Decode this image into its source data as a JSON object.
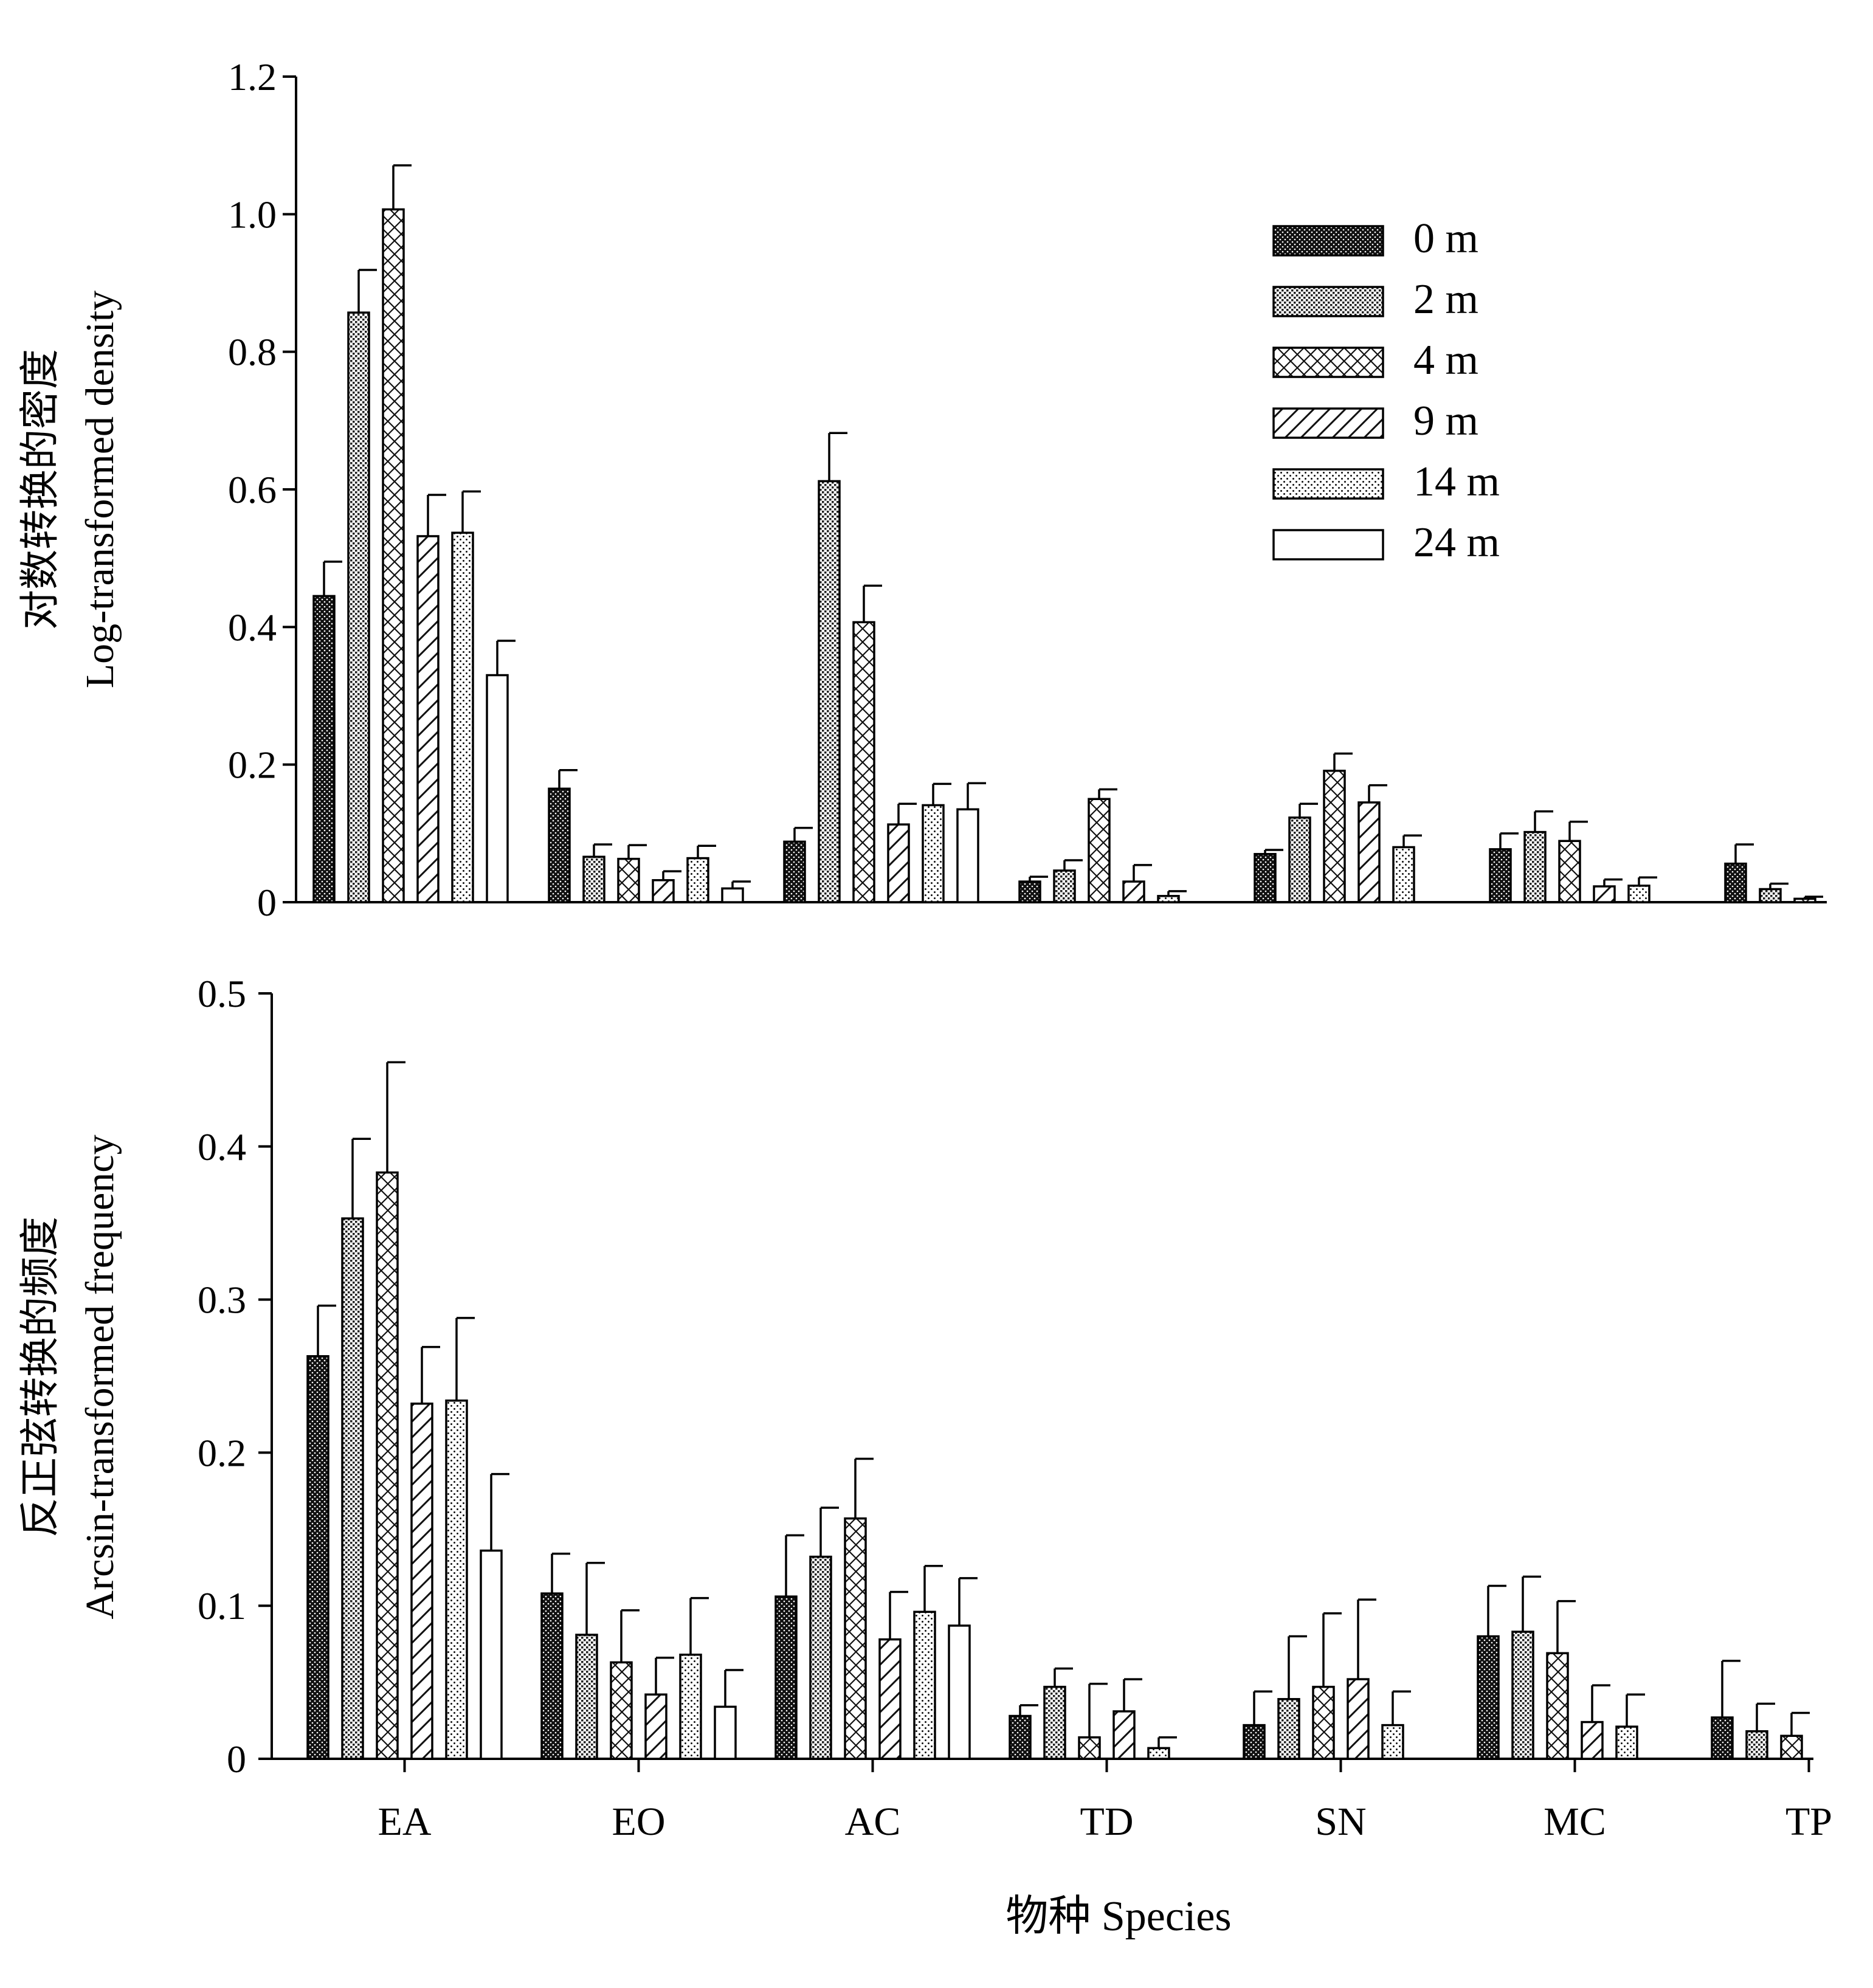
{
  "series_names": [
    "0 m",
    "2 m",
    "4 m",
    "9 m",
    "14 m",
    "24 m"
  ],
  "x_title": "物种 Species",
  "chart_data": [
    {
      "type": "bar",
      "panel": "top",
      "ylabel_cn": "对数转换的密度",
      "ylabel_en": "Log-transformed density",
      "ylim": [
        0,
        1.2
      ],
      "yticks": [
        "0",
        "0.2",
        "0.4",
        "0.6",
        "0.8",
        "1.0",
        "1.2"
      ],
      "categories": [
        "EA",
        "EO",
        "AC",
        "TD",
        "SN",
        "MC",
        "TP"
      ],
      "category_labels_visible": false,
      "legend_position": "top-right",
      "series": [
        {
          "name": "0 m",
          "values": [
            0.445,
            0.165,
            0.088,
            0.03,
            0.07,
            0.077,
            0.056
          ],
          "errors": [
            0.05,
            0.027,
            0.02,
            0.007,
            0.006,
            0.023,
            0.028
          ]
        },
        {
          "name": "2 m",
          "values": [
            0.857,
            0.066,
            0.612,
            0.046,
            0.123,
            0.102,
            0.019
          ],
          "errors": [
            0.062,
            0.018,
            0.07,
            0.015,
            0.02,
            0.03,
            0.008
          ]
        },
        {
          "name": "4 m",
          "values": [
            1.007,
            0.063,
            0.407,
            0.15,
            0.191,
            0.089,
            0.005
          ],
          "errors": [
            0.064,
            0.02,
            0.053,
            0.014,
            0.025,
            0.028,
            0.003
          ]
        },
        {
          "name": "9 m",
          "values": [
            0.532,
            0.032,
            0.113,
            0.03,
            0.145,
            0.023,
            null
          ],
          "errors": [
            0.06,
            0.013,
            0.03,
            0.024,
            0.025,
            0.01,
            null
          ]
        },
        {
          "name": "14 m",
          "values": [
            0.537,
            0.064,
            0.141,
            0.009,
            0.08,
            0.024,
            null
          ],
          "errors": [
            0.06,
            0.018,
            0.031,
            0.007,
            0.017,
            0.012,
            null
          ]
        },
        {
          "name": "24 m",
          "values": [
            0.33,
            0.02,
            0.135,
            null,
            null,
            null,
            null
          ],
          "errors": [
            0.05,
            0.01,
            0.038,
            null,
            null,
            null,
            null
          ]
        }
      ]
    },
    {
      "type": "bar",
      "panel": "bottom",
      "ylabel_cn": "反正弦转换的频度",
      "ylabel_en": "Arcsin-transformed frequency",
      "ylim": [
        0,
        0.5
      ],
      "yticks": [
        "0",
        "0.1",
        "0.2",
        "0.3",
        "0.4",
        "0.5"
      ],
      "categories": [
        "EA",
        "EO",
        "AC",
        "TD",
        "SN",
        "MC",
        "TP"
      ],
      "category_labels_visible": true,
      "series": [
        {
          "name": "0 m",
          "values": [
            0.263,
            0.108,
            0.106,
            0.028,
            0.022,
            0.08,
            0.027
          ],
          "errors": [
            0.033,
            0.026,
            0.04,
            0.007,
            0.022,
            0.033,
            0.037
          ]
        },
        {
          "name": "2 m",
          "values": [
            0.353,
            0.081,
            0.132,
            0.047,
            0.039,
            0.083,
            0.018
          ],
          "errors": [
            0.052,
            0.047,
            0.032,
            0.012,
            0.041,
            0.036,
            0.018
          ]
        },
        {
          "name": "4 m",
          "values": [
            0.383,
            0.063,
            0.157,
            0.014,
            0.047,
            0.069,
            0.015
          ],
          "errors": [
            0.072,
            0.034,
            0.039,
            0.035,
            0.048,
            0.034,
            0.015
          ]
        },
        {
          "name": "9 m",
          "values": [
            0.232,
            0.042,
            0.078,
            0.031,
            0.052,
            0.024,
            null
          ],
          "errors": [
            0.037,
            0.024,
            0.031,
            0.021,
            0.052,
            0.024,
            null
          ]
        },
        {
          "name": "14 m",
          "values": [
            0.234,
            0.068,
            0.096,
            0.007,
            0.022,
            0.021,
            null
          ],
          "errors": [
            0.054,
            0.037,
            0.03,
            0.007,
            0.022,
            0.021,
            null
          ]
        },
        {
          "name": "24 m",
          "values": [
            0.136,
            0.034,
            0.087,
            null,
            null,
            null,
            null
          ],
          "errors": [
            0.05,
            0.024,
            0.031,
            null,
            null,
            null,
            null
          ]
        }
      ]
    }
  ]
}
